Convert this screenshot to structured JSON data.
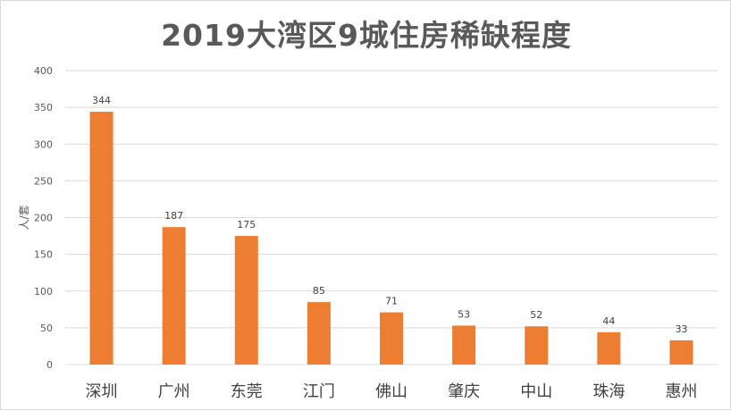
{
  "chart_data": {
    "type": "bar",
    "title": "2019大湾区9城住房稀缺程度",
    "xlabel": "",
    "ylabel": "人/套",
    "categories": [
      "深圳",
      "广州",
      "东莞",
      "江门",
      "佛山",
      "肇庆",
      "中山",
      "珠海",
      "惠州"
    ],
    "values": [
      344,
      187,
      175,
      85,
      71,
      53,
      52,
      44,
      33
    ],
    "ylim": [
      0,
      400
    ],
    "yticks": [
      0,
      50,
      100,
      150,
      200,
      250,
      300,
      350,
      400
    ],
    "grid": true,
    "bar_color": "#ED7D31",
    "grid_color": "#D9D9D9"
  }
}
